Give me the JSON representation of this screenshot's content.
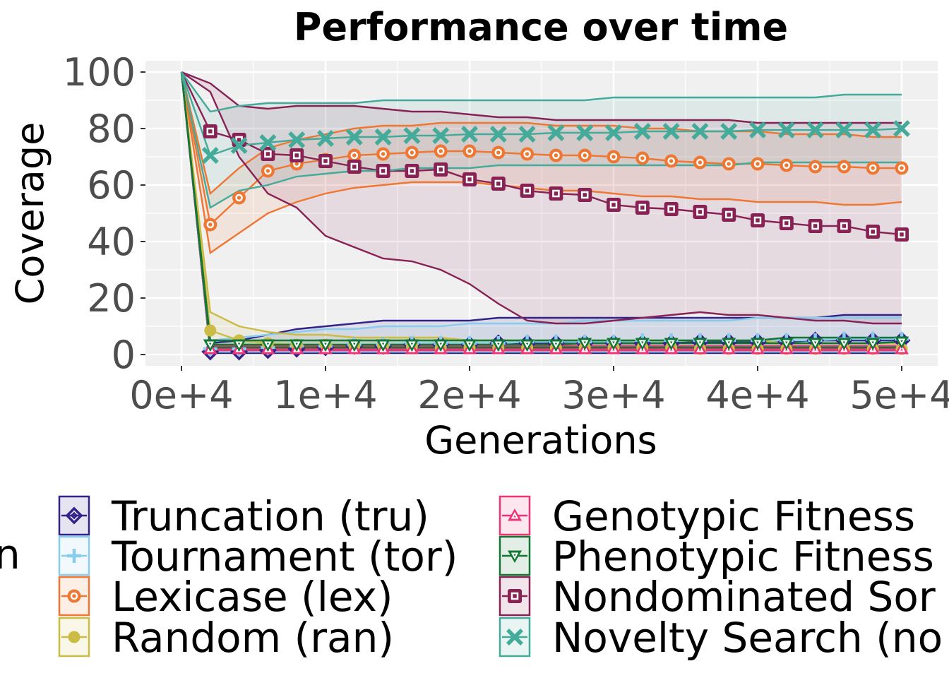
{
  "chart_data": {
    "type": "line",
    "title": "Performance over time",
    "xlabel": "Generations",
    "ylabel": "Coverage",
    "xlim": [
      -2500,
      52500
    ],
    "ylim": [
      -4,
      104
    ],
    "x_ticks": [
      0,
      10000,
      20000,
      30000,
      40000,
      50000
    ],
    "x_tick_labels": [
      "0e+4",
      "1e+4",
      "2e+4",
      "3e+4",
      "4e+4",
      "5e+4"
    ],
    "y_ticks": [
      0,
      20,
      40,
      60,
      80,
      100
    ],
    "y_tick_labels": [
      "0",
      "20",
      "40",
      "60",
      "80",
      "100"
    ],
    "grid": true,
    "legend_position": "bottom",
    "legend_title_fragment": "n",
    "marker_x": [
      2000,
      4000,
      6000,
      8000,
      10000,
      12000,
      14000,
      16000,
      18000,
      20000,
      22000,
      24000,
      26000,
      28000,
      30000,
      32000,
      34000,
      36000,
      38000,
      40000,
      42000,
      44000,
      46000,
      48000,
      50000
    ],
    "series": [
      {
        "name": "Truncation (tru)",
        "color": "#332288",
        "marker": "diamond",
        "mean": [
          1,
          1,
          1.5,
          2,
          2.5,
          3,
          3,
          3.5,
          3.5,
          3.5,
          4,
          4,
          4,
          4,
          4,
          4,
          4,
          4.5,
          4.5,
          4.5,
          4.5,
          5,
          5,
          5,
          5
        ],
        "lower": [
          0.5,
          0.5,
          0.5,
          0.5,
          0.5,
          0.5,
          0.5,
          0.5,
          0.5,
          0.5,
          0.5,
          0.5,
          0.5,
          0.5,
          0.5,
          0.5,
          0.5,
          0.5,
          0.5,
          0.5,
          0.5,
          0.5,
          0.5,
          0.5,
          0.5
        ],
        "upper": [
          4,
          5,
          7,
          9,
          10,
          11,
          12,
          12,
          12,
          12,
          13,
          13,
          13,
          13,
          13,
          13,
          13,
          13,
          13,
          13,
          13,
          13,
          14,
          14,
          14
        ]
      },
      {
        "name": "Tournament (tor)",
        "color": "#88ccee",
        "marker": "plus",
        "mean": [
          2,
          2,
          2.5,
          3,
          3,
          3.5,
          3.5,
          4,
          4,
          4,
          4,
          4.5,
          4.5,
          4.5,
          4.5,
          5,
          5,
          5,
          5,
          5,
          5,
          5,
          5.5,
          5.5,
          5.5
        ],
        "lower": [
          1,
          1,
          1,
          1,
          1,
          1,
          1,
          1,
          1,
          1,
          1,
          1,
          1,
          1,
          1,
          1,
          1,
          1,
          1,
          1,
          1,
          1,
          1,
          1,
          1
        ],
        "upper": [
          5,
          6,
          7,
          8,
          9,
          9,
          10,
          10,
          10,
          11,
          11,
          11,
          11,
          12,
          12,
          12,
          12,
          12,
          12,
          13,
          13,
          13,
          13,
          13,
          13
        ]
      },
      {
        "name": "Lexicase (lex)",
        "color": "#ee7733",
        "marker": "circle-open",
        "mean": [
          46,
          55.5,
          65,
          67.5,
          69,
          70.5,
          71,
          71.5,
          72,
          72,
          71.5,
          71,
          70.5,
          70.5,
          70,
          69.5,
          68.5,
          68,
          67.5,
          67.5,
          67,
          66.5,
          66.5,
          66,
          66
        ],
        "lower": [
          36,
          43,
          50,
          54,
          57,
          59,
          60,
          61,
          61,
          61,
          60,
          59,
          58,
          58,
          57,
          56,
          56,
          55,
          55,
          54,
          54,
          54,
          53,
          53,
          54
        ],
        "upper": [
          57,
          66,
          73,
          76,
          78,
          80,
          81,
          81,
          82,
          82,
          82,
          82,
          81,
          81,
          81,
          80,
          80,
          79,
          79,
          79,
          78,
          78,
          78,
          77,
          77
        ]
      },
      {
        "name": "Random (ran)",
        "color": "#ccbb44",
        "marker": "circle-filled",
        "mean": [
          8.5,
          5,
          4,
          3.5,
          3.5,
          3,
          3,
          3,
          2.5,
          2.5,
          2.5,
          2.5,
          2.5,
          2.5,
          2.5,
          2.5,
          2.5,
          2,
          2,
          2,
          2,
          2,
          2,
          2,
          2
        ],
        "lower": [
          3,
          2.5,
          2,
          2,
          2,
          2,
          1.5,
          1.5,
          1.5,
          1.5,
          1.5,
          1.5,
          1.5,
          1.5,
          1.5,
          1.5,
          1.5,
          1.5,
          1.5,
          1.5,
          1.5,
          1.5,
          1.5,
          1.5,
          1.5
        ],
        "upper": [
          15,
          10,
          8,
          7,
          7,
          6,
          6,
          6,
          6,
          5,
          5,
          5,
          5,
          5,
          5,
          5,
          5,
          5,
          5,
          5,
          4,
          4,
          4,
          4,
          4
        ]
      },
      {
        "name": "Genotypic Fitness",
        "color": "#ee3377",
        "marker": "triangle-up",
        "mean": [
          2,
          2,
          2,
          2,
          2,
          2,
          2,
          2,
          2,
          2,
          2,
          2,
          2,
          2,
          2,
          2,
          2,
          2,
          2,
          2,
          2,
          2,
          2,
          2,
          2
        ],
        "lower": [
          1.5,
          1.5,
          1.5,
          1.5,
          1.5,
          1.5,
          1.5,
          1.5,
          1.5,
          1.5,
          1.5,
          1.5,
          1.5,
          1.5,
          1.5,
          1.5,
          1.5,
          1.5,
          1.5,
          1.5,
          1.5,
          1.5,
          1.5,
          1.5,
          1.5
        ],
        "upper": [
          3,
          3,
          3,
          3,
          3,
          3,
          3,
          3,
          3,
          3,
          3,
          3,
          3,
          3,
          3,
          3,
          3,
          3,
          3,
          3,
          3,
          3,
          3,
          3,
          3
        ]
      },
      {
        "name": "Phenotypic Fitness",
        "color": "#117733",
        "marker": "triangle-down",
        "mean": [
          3.5,
          3.5,
          3.5,
          3.5,
          3.5,
          3.5,
          3.5,
          3.5,
          3.5,
          3.5,
          3.5,
          3.5,
          3.5,
          4,
          4,
          4,
          4,
          4,
          4,
          4,
          4,
          4,
          4,
          4,
          4.5
        ],
        "lower": [
          2.5,
          2.5,
          2.5,
          2.5,
          2.5,
          2.5,
          2.5,
          2.5,
          2.5,
          2.5,
          2.5,
          2.5,
          2.5,
          2.5,
          2.5,
          2.5,
          2.5,
          2.5,
          2.5,
          2.5,
          2.5,
          2.5,
          2.5,
          2.5,
          2.5
        ],
        "upper": [
          5,
          5,
          5,
          5,
          5,
          5,
          5,
          5,
          5,
          5,
          5,
          5,
          5,
          5,
          5,
          5,
          5,
          5,
          5,
          5,
          6,
          6,
          6,
          6,
          6
        ]
      },
      {
        "name": "Nondominated Sor",
        "color": "#882255",
        "marker": "square-open",
        "mean": [
          79,
          76,
          71,
          70.5,
          68.5,
          66.5,
          65,
          65,
          65.5,
          62,
          60.5,
          58,
          57,
          56.5,
          53,
          52,
          51.5,
          50.5,
          49.5,
          47.5,
          46.5,
          45.5,
          45.5,
          43.5,
          42.5
        ],
        "lower": [
          93,
          70,
          57,
          52,
          42,
          38,
          34,
          33,
          30,
          25,
          18,
          12,
          11,
          11,
          12,
          13,
          14,
          15,
          14,
          14,
          13,
          12,
          12,
          11,
          11
        ],
        "upper": [
          96,
          88,
          87,
          88,
          88,
          88,
          87,
          86,
          86,
          85,
          84,
          84,
          83,
          83,
          83,
          83,
          83,
          83,
          83,
          82,
          82,
          82,
          82,
          82,
          82
        ]
      },
      {
        "name": "Novelty Search (no",
        "color": "#44aa99",
        "marker": "cross",
        "mean": [
          70.5,
          74,
          75,
          76,
          76.5,
          77,
          77,
          77.5,
          77.5,
          78,
          78,
          78,
          78.5,
          78.5,
          78.5,
          79,
          79,
          79,
          79,
          79.5,
          79.5,
          79.5,
          79.5,
          79.5,
          80
        ],
        "lower": [
          52,
          58,
          60,
          63,
          64,
          65,
          65,
          66,
          66,
          66,
          67,
          67,
          67,
          67,
          67,
          67,
          67,
          67,
          67,
          68,
          68,
          68,
          68,
          68,
          68
        ],
        "upper": [
          86,
          88,
          89,
          89,
          89,
          89,
          90,
          90,
          90,
          90,
          90,
          90,
          90,
          90,
          91,
          91,
          91,
          91,
          91,
          91,
          91,
          91,
          92,
          92,
          92
        ]
      }
    ],
    "legend": {
      "col1": [
        "Truncation (tru)",
        "Tournament (tor)",
        "Lexicase (lex)",
        "Random (ran)"
      ],
      "col2": [
        "Genotypic Fitness",
        "Phenotypic Fitness",
        "Nondominated Sor",
        "Novelty Search (no"
      ]
    }
  }
}
